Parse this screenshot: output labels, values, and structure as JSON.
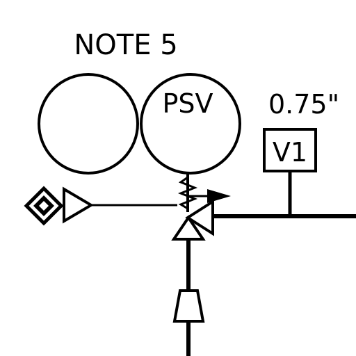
{
  "diagram": {
    "note_label": "NOTE 5",
    "psv_label": "PSV",
    "size_label": "0.75\"",
    "valve_tag": "V1"
  }
}
